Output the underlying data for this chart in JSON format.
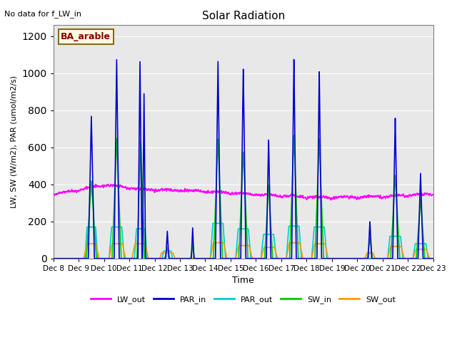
{
  "title": "Solar Radiation",
  "top_left_text": "No data for f_LW_in",
  "ylabel": "LW, SW (W/m2), PAR (umol/m2/s)",
  "xlabel": "Time",
  "annotation": "BA_arable",
  "background_color": "#e8e8e8",
  "ylim": [
    0,
    1260
  ],
  "yticks": [
    0,
    200,
    400,
    600,
    800,
    1000,
    1200
  ],
  "xtick_labels": [
    "Dec 8",
    "Dec 9",
    "Dec 10",
    "Dec 11",
    "Dec 12",
    "Dec 13",
    "Dec 14",
    "Dec 15",
    "Dec 16",
    "Dec 17",
    "Dec 18",
    "Dec 19",
    "Dec 20",
    "Dec 21",
    "Dec 22",
    "Dec 23"
  ],
  "colors": {
    "LW_out": "#ff00ff",
    "PAR_in": "#0000cc",
    "PAR_out": "#00cccc",
    "SW_in": "#00cc00",
    "SW_out": "#ff9900"
  }
}
